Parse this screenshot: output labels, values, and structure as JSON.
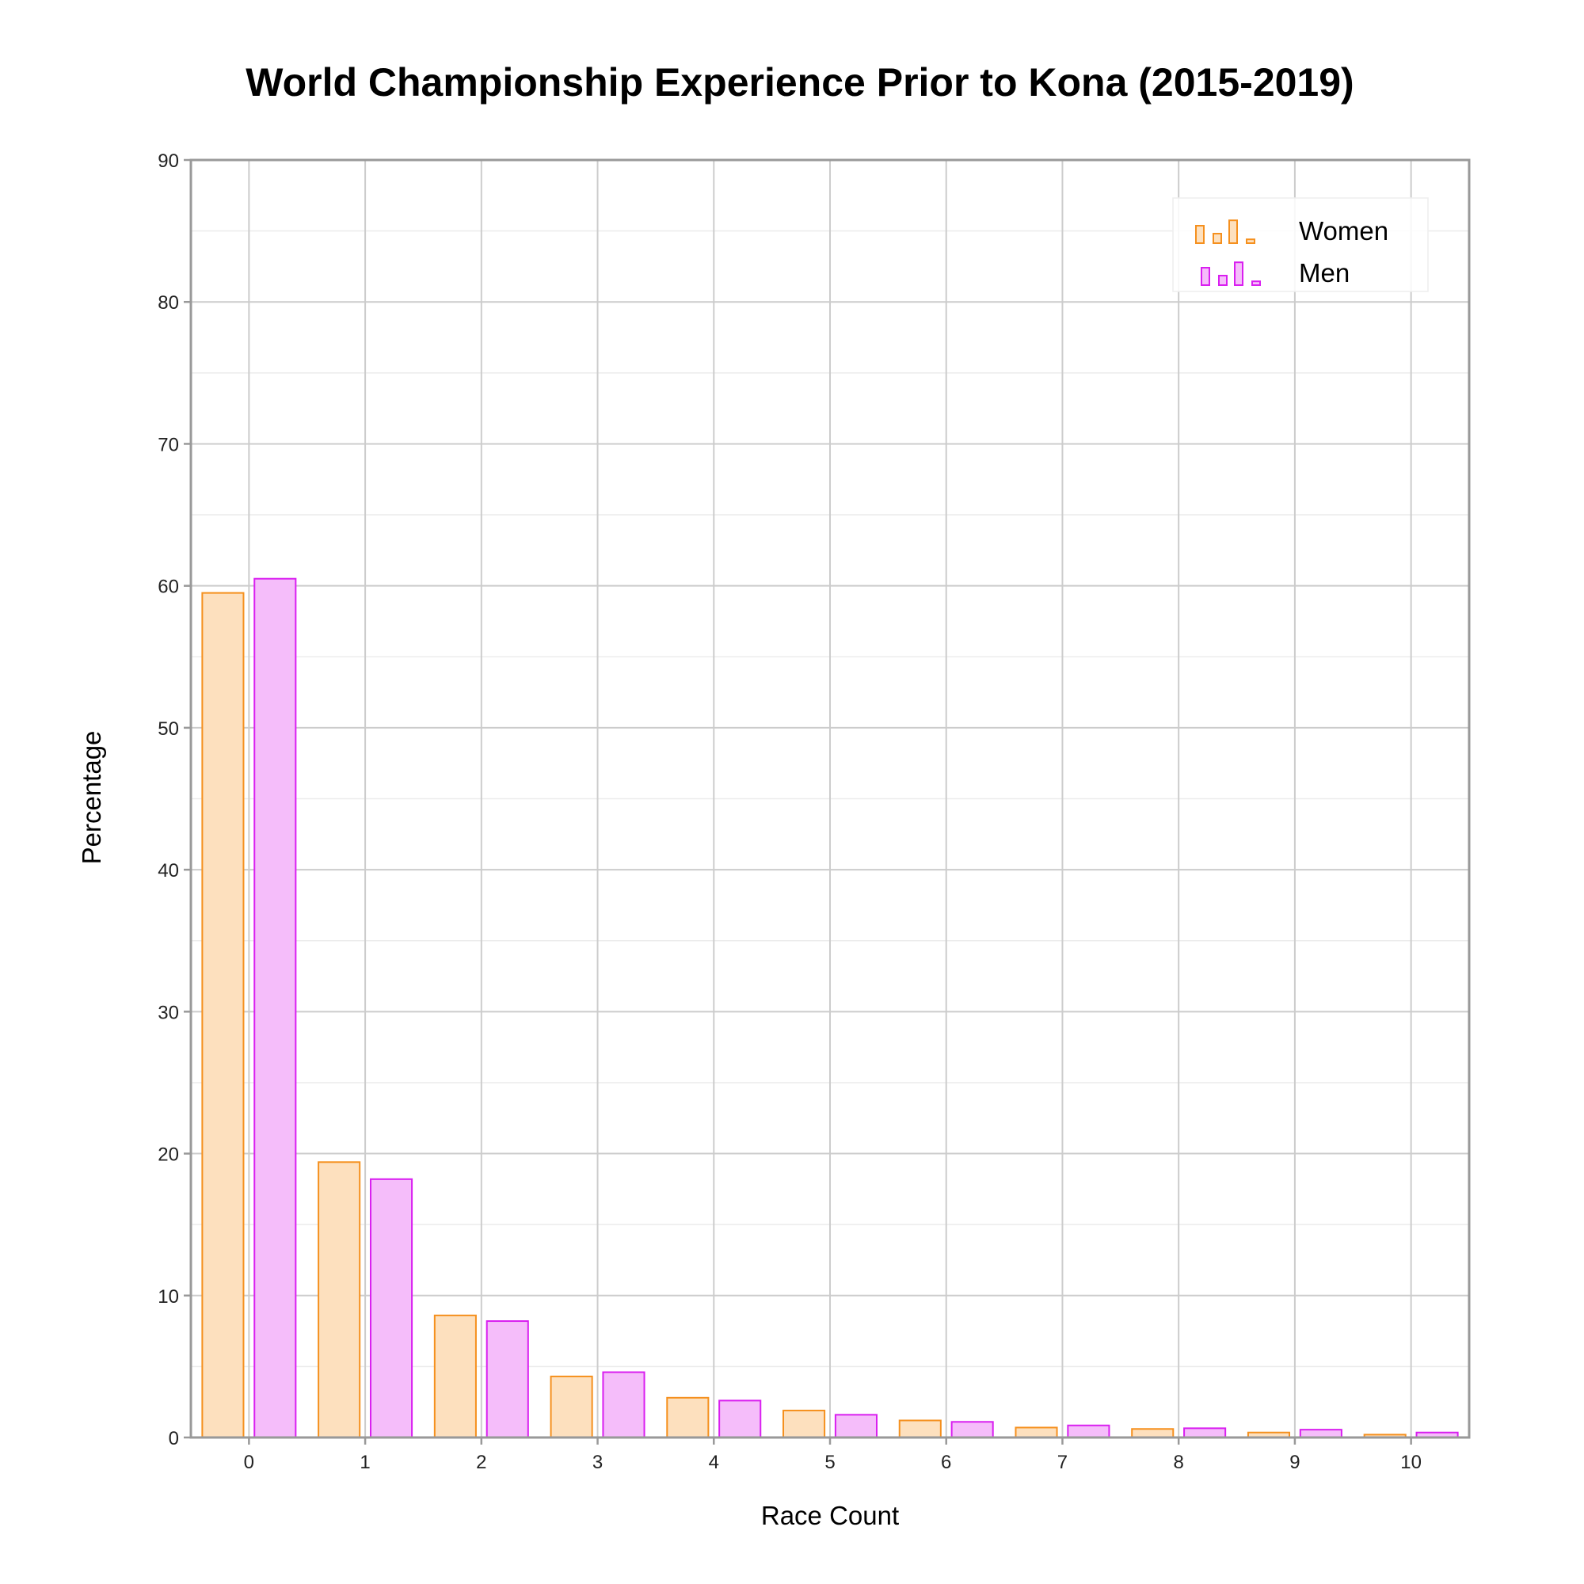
{
  "chart_data": {
    "type": "bar",
    "title": "World Championship Experience Prior to Kona (2015-2019)",
    "xlabel": "Race Count",
    "ylabel": "Percentage",
    "categories": [
      "0",
      "1",
      "2",
      "3",
      "4",
      "5",
      "6",
      "7",
      "8",
      "9",
      "10"
    ],
    "ylim": [
      0,
      90
    ],
    "yticks": [
      "0",
      "10",
      "20",
      "30",
      "40",
      "50",
      "60",
      "70",
      "80",
      "90"
    ],
    "grid": true,
    "legend_position": "top-right",
    "series": [
      {
        "name": "Women",
        "fill": "#fde0be",
        "stroke": "#f5901e",
        "values": [
          59.5,
          19.4,
          8.6,
          4.3,
          2.8,
          1.9,
          1.2,
          0.7,
          0.6,
          0.35,
          0.2
        ]
      },
      {
        "name": "Men",
        "fill": "#f5bdfa",
        "stroke": "#d91ff0",
        "values": [
          60.5,
          18.2,
          8.2,
          4.6,
          2.6,
          1.6,
          1.1,
          0.85,
          0.65,
          0.55,
          0.35
        ]
      }
    ]
  }
}
